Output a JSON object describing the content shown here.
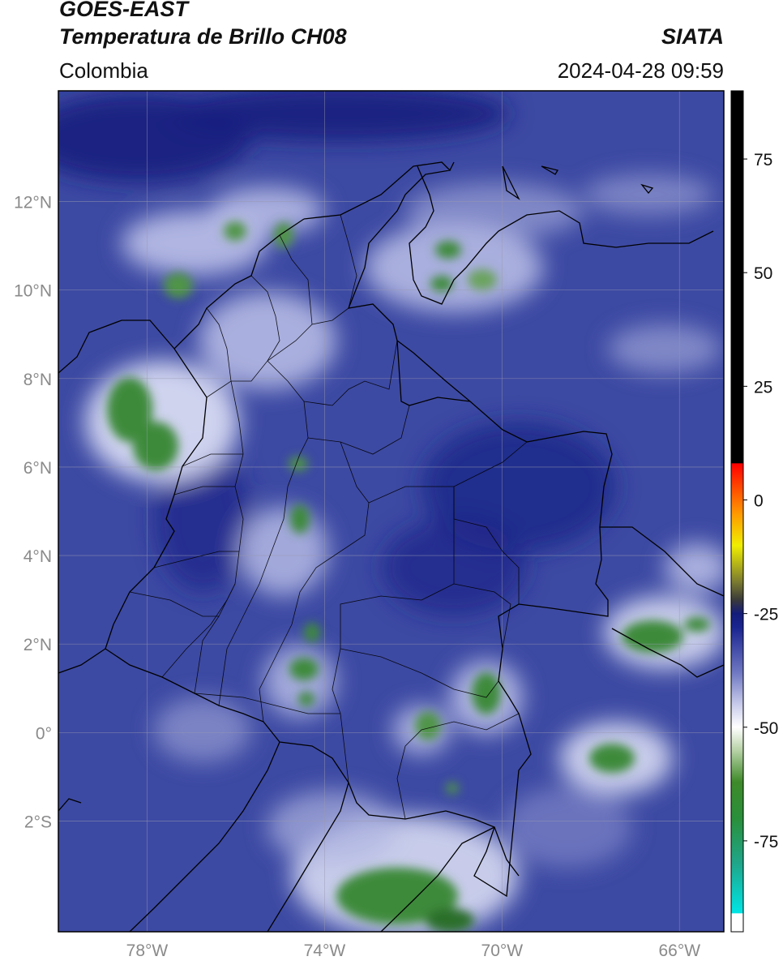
{
  "header": {
    "satellite": "GOES-EAST",
    "product": "Temperatura de Brillo CH08",
    "brand": "SIATA",
    "region": "Colombia",
    "timestamp": "2024-04-28 09:59"
  },
  "map": {
    "lon_range": [
      -80,
      -65
    ],
    "lat_range": [
      -4.5,
      14.5
    ],
    "lat_ticks": [
      {
        "value": 12,
        "label": "12°N"
      },
      {
        "value": 10,
        "label": "10°N"
      },
      {
        "value": 8,
        "label": "8°N"
      },
      {
        "value": 6,
        "label": "6°N"
      },
      {
        "value": 4,
        "label": "4°N"
      },
      {
        "value": 2,
        "label": "2°N"
      },
      {
        "value": 0,
        "label": "0°"
      },
      {
        "value": -2,
        "label": "2°S"
      }
    ],
    "lon_ticks": [
      {
        "value": -78,
        "label": "78°W"
      },
      {
        "value": -74,
        "label": "74°W"
      },
      {
        "value": -70,
        "label": "70°W"
      },
      {
        "value": -66,
        "label": "66°W"
      }
    ],
    "colors": {
      "base": "#3d4aa3",
      "dark": "#161d7e",
      "light": "#c4c8ec",
      "green": "#3d8a3a",
      "border": "#000000"
    }
  },
  "colorbar": {
    "range": [
      -95,
      90
    ],
    "ticks": [
      {
        "value": 75,
        "label": "75"
      },
      {
        "value": 50,
        "label": "50"
      },
      {
        "value": 25,
        "label": "25"
      },
      {
        "value": 0,
        "label": "0"
      },
      {
        "value": -25,
        "label": "-25"
      },
      {
        "value": -50,
        "label": "-50"
      },
      {
        "value": -75,
        "label": "-75"
      }
    ],
    "stops": [
      {
        "value": -95,
        "color": "#ffffff"
      },
      {
        "value": -91,
        "color": "#ffffff"
      },
      {
        "value": -90.9,
        "color": "#00e5e5"
      },
      {
        "value": -80,
        "color": "#1fa68a"
      },
      {
        "value": -70,
        "color": "#2a8f3a"
      },
      {
        "value": -62,
        "color": "#3f8a2a"
      },
      {
        "value": -55,
        "color": "#b8d3a8"
      },
      {
        "value": -50,
        "color": "#ffffff"
      },
      {
        "value": -45,
        "color": "#c8cbeb"
      },
      {
        "value": -38,
        "color": "#6f78c2"
      },
      {
        "value": -28,
        "color": "#1a2490"
      },
      {
        "value": -25,
        "color": "#141c7a"
      },
      {
        "value": -22,
        "color": "#3a3a3a"
      },
      {
        "value": -18,
        "color": "#7b7b30"
      },
      {
        "value": -10,
        "color": "#f0ee00"
      },
      {
        "value": -3,
        "color": "#ff9900"
      },
      {
        "value": 8,
        "color": "#ff0000"
      },
      {
        "value": 8.1,
        "color": "#000000"
      },
      {
        "value": 90,
        "color": "#000000"
      }
    ]
  }
}
